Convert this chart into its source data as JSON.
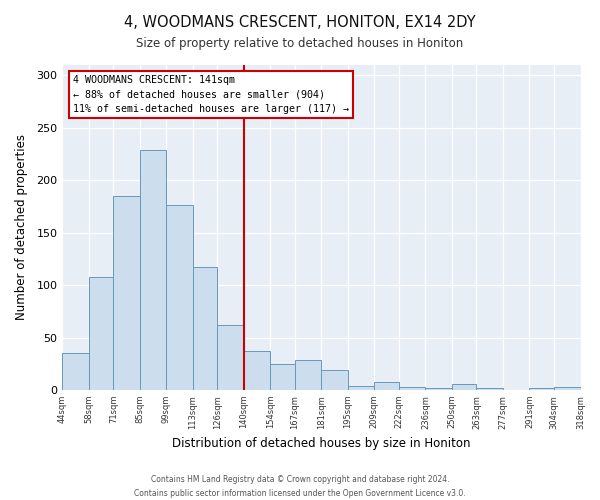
{
  "title": "4, WOODMANS CRESCENT, HONITON, EX14 2DY",
  "subtitle": "Size of property relative to detached houses in Honiton",
  "xlabel": "Distribution of detached houses by size in Honiton",
  "ylabel": "Number of detached properties",
  "bar_color": "#ccdded",
  "bar_edge_color": "#6699bb",
  "annotation_text": "4 WOODMANS CRESCENT: 141sqm\n← 88% of detached houses are smaller (904)\n11% of semi-detached houses are larger (117) →",
  "vline_x": 140,
  "vline_color": "#cc0000",
  "bin_edges": [
    44,
    58,
    71,
    85,
    99,
    113,
    126,
    140,
    154,
    167,
    181,
    195,
    209,
    222,
    236,
    250,
    263,
    277,
    291,
    304,
    318
  ],
  "bin_heights": [
    35,
    108,
    185,
    229,
    176,
    117,
    62,
    37,
    25,
    29,
    19,
    4,
    8,
    3,
    2,
    6,
    2,
    0,
    2,
    3
  ],
  "ylim": [
    0,
    310
  ],
  "yticks": [
    0,
    50,
    100,
    150,
    200,
    250,
    300
  ],
  "footer": "Contains HM Land Registry data © Crown copyright and database right 2024.\nContains public sector information licensed under the Open Government Licence v3.0.",
  "bg_color": "#ffffff",
  "plot_bg_color": "#e8eef5"
}
